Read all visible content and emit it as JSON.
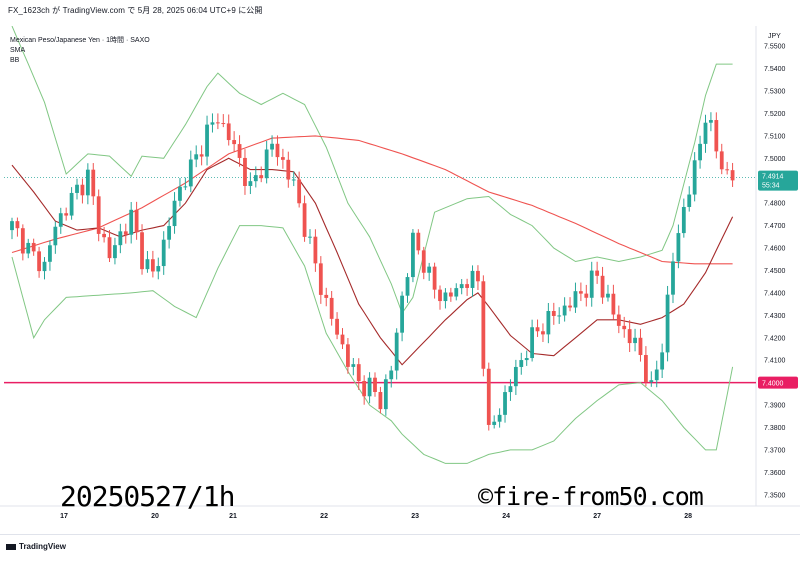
{
  "caption": "FX_1623ch が TradingView.com で 5月 28, 2025 06:04 UTC+9 に公開",
  "legend": {
    "symbol": "Mexican Peso/Japanese Yen · 1時間 · SAXO",
    "sma": "SMA",
    "bb": "BB"
  },
  "currency": "JPY",
  "last_price": "7.4914",
  "countdown": "55:34",
  "hline_label": "7.4000",
  "watermark_left": "20250527/1h",
  "watermark_right": "©fire-from50.com",
  "footer_logo": "TradingView",
  "colors": {
    "up": "#26a69a",
    "down": "#ef5350",
    "bb_band": "#81c784",
    "bb_mid": "#a52a2a",
    "sma": "#ef5350",
    "hline": "#e91e63",
    "last": "#26a69a"
  },
  "chart_data": {
    "type": "candlestick",
    "x_tick_labels": [
      "17",
      "20",
      "21",
      "22",
      "23",
      "24",
      "27",
      "28"
    ],
    "y_ticks": [
      "7.5500",
      "7.5400",
      "7.5300",
      "7.5200",
      "7.5100",
      "7.5000",
      "7.4900",
      "7.4800",
      "7.4700",
      "7.4600",
      "7.4500",
      "7.4400",
      "7.4300",
      "7.4200",
      "7.4100",
      "7.4000",
      "7.3900",
      "7.3800",
      "7.3700",
      "7.3600",
      "7.3500"
    ],
    "ylim": [
      7.345,
      7.559
    ],
    "horizontal_line": 7.4,
    "last_close": 7.4914,
    "close_path": [
      [
        0,
        7.47
      ],
      [
        2,
        7.463
      ],
      [
        4,
        7.456
      ],
      [
        6,
        7.452
      ],
      [
        8,
        7.47
      ],
      [
        10,
        7.478
      ],
      [
        12,
        7.486
      ],
      [
        14,
        7.492
      ],
      [
        16,
        7.47
      ],
      [
        18,
        7.456
      ],
      [
        20,
        7.466
      ],
      [
        22,
        7.474
      ],
      [
        24,
        7.456
      ],
      [
        26,
        7.448
      ],
      [
        28,
        7.462
      ],
      [
        30,
        7.48
      ],
      [
        32,
        7.492
      ],
      [
        34,
        7.5
      ],
      [
        36,
        7.512
      ],
      [
        38,
        7.518
      ],
      [
        40,
        7.51
      ],
      [
        42,
        7.499
      ],
      [
        44,
        7.486
      ],
      [
        46,
        7.496
      ],
      [
        48,
        7.506
      ],
      [
        50,
        7.498
      ],
      [
        52,
        7.488
      ],
      [
        54,
        7.47
      ],
      [
        56,
        7.452
      ],
      [
        58,
        7.435
      ],
      [
        60,
        7.422
      ],
      [
        62,
        7.41
      ],
      [
        64,
        7.4
      ],
      [
        66,
        7.398
      ],
      [
        68,
        7.392
      ],
      [
        70,
        7.406
      ],
      [
        72,
        7.438
      ],
      [
        74,
        7.463
      ],
      [
        76,
        7.454
      ],
      [
        78,
        7.441
      ],
      [
        80,
        7.438
      ],
      [
        82,
        7.441
      ],
      [
        84,
        7.446
      ],
      [
        86,
        7.445
      ],
      [
        88,
        7.377
      ],
      [
        90,
        7.388
      ],
      [
        92,
        7.4
      ],
      [
        94,
        7.41
      ],
      [
        96,
        7.42
      ],
      [
        98,
        7.426
      ],
      [
        100,
        7.43
      ],
      [
        102,
        7.433
      ],
      [
        104,
        7.438
      ],
      [
        106,
        7.442
      ],
      [
        108,
        7.448
      ],
      [
        110,
        7.436
      ],
      [
        112,
        7.426
      ],
      [
        114,
        7.42
      ],
      [
        116,
        7.413
      ],
      [
        118,
        7.396
      ],
      [
        120,
        7.417
      ],
      [
        122,
        7.455
      ],
      [
        124,
        7.478
      ],
      [
        126,
        7.495
      ],
      [
        128,
        7.52
      ],
      [
        130,
        7.504
      ],
      [
        132,
        7.492
      ],
      [
        133,
        7.4914
      ]
    ],
    "bb_upper": [
      [
        0,
        7.559
      ],
      [
        6,
        7.525
      ],
      [
        10,
        7.493
      ],
      [
        14,
        7.502
      ],
      [
        18,
        7.501
      ],
      [
        22,
        7.492
      ],
      [
        24,
        7.501
      ],
      [
        28,
        7.5
      ],
      [
        32,
        7.515
      ],
      [
        36,
        7.532
      ],
      [
        38,
        7.538
      ],
      [
        42,
        7.529
      ],
      [
        46,
        7.524
      ],
      [
        50,
        7.529
      ],
      [
        54,
        7.524
      ],
      [
        58,
        7.505
      ],
      [
        62,
        7.48
      ],
      [
        66,
        7.465
      ],
      [
        70,
        7.444
      ],
      [
        72,
        7.431
      ],
      [
        74,
        7.438
      ],
      [
        78,
        7.476
      ],
      [
        84,
        7.482
      ],
      [
        88,
        7.483
      ],
      [
        92,
        7.475
      ],
      [
        96,
        7.47
      ],
      [
        100,
        7.46
      ],
      [
        104,
        7.454
      ],
      [
        108,
        7.456
      ],
      [
        112,
        7.454
      ],
      [
        116,
        7.456
      ],
      [
        120,
        7.459
      ],
      [
        122,
        7.47
      ],
      [
        126,
        7.507
      ],
      [
        128,
        7.528
      ],
      [
        130,
        7.542
      ],
      [
        133,
        7.542
      ]
    ],
    "bb_lower": [
      [
        0,
        7.456
      ],
      [
        4,
        7.42
      ],
      [
        6,
        7.428
      ],
      [
        10,
        7.438
      ],
      [
        16,
        7.439
      ],
      [
        22,
        7.44
      ],
      [
        26,
        7.441
      ],
      [
        30,
        7.434
      ],
      [
        34,
        7.429
      ],
      [
        38,
        7.451
      ],
      [
        42,
        7.47
      ],
      [
        46,
        7.47
      ],
      [
        50,
        7.469
      ],
      [
        54,
        7.452
      ],
      [
        58,
        7.422
      ],
      [
        62,
        7.405
      ],
      [
        66,
        7.39
      ],
      [
        70,
        7.383
      ],
      [
        72,
        7.377
      ],
      [
        76,
        7.368
      ],
      [
        80,
        7.364
      ],
      [
        84,
        7.364
      ],
      [
        88,
        7.368
      ],
      [
        92,
        7.37
      ],
      [
        96,
        7.37
      ],
      [
        100,
        7.374
      ],
      [
        104,
        7.384
      ],
      [
        108,
        7.392
      ],
      [
        112,
        7.399
      ],
      [
        116,
        7.4
      ],
      [
        120,
        7.392
      ],
      [
        124,
        7.38
      ],
      [
        128,
        7.37
      ],
      [
        130,
        7.37
      ],
      [
        133,
        7.407
      ]
    ],
    "bb_middle": [
      [
        0,
        7.497
      ],
      [
        4,
        7.485
      ],
      [
        8,
        7.472
      ],
      [
        12,
        7.468
      ],
      [
        16,
        7.469
      ],
      [
        20,
        7.465
      ],
      [
        24,
        7.468
      ],
      [
        28,
        7.47
      ],
      [
        32,
        7.48
      ],
      [
        36,
        7.495
      ],
      [
        40,
        7.5
      ],
      [
        44,
        7.495
      ],
      [
        48,
        7.495
      ],
      [
        52,
        7.494
      ],
      [
        56,
        7.48
      ],
      [
        60,
        7.458
      ],
      [
        64,
        7.435
      ],
      [
        68,
        7.42
      ],
      [
        72,
        7.408
      ],
      [
        76,
        7.418
      ],
      [
        80,
        7.428
      ],
      [
        84,
        7.437
      ],
      [
        86,
        7.44
      ],
      [
        88,
        7.434
      ],
      [
        92,
        7.421
      ],
      [
        96,
        7.413
      ],
      [
        100,
        7.412
      ],
      [
        104,
        7.42
      ],
      [
        108,
        7.428
      ],
      [
        112,
        7.428
      ],
      [
        116,
        7.426
      ],
      [
        120,
        7.429
      ],
      [
        124,
        7.435
      ],
      [
        128,
        7.449
      ],
      [
        133,
        7.474
      ]
    ],
    "sma": [
      [
        0,
        7.458
      ],
      [
        8,
        7.464
      ],
      [
        16,
        7.469
      ],
      [
        24,
        7.478
      ],
      [
        32,
        7.489
      ],
      [
        40,
        7.502
      ],
      [
        48,
        7.509
      ],
      [
        56,
        7.51
      ],
      [
        64,
        7.508
      ],
      [
        72,
        7.502
      ],
      [
        80,
        7.495
      ],
      [
        88,
        7.485
      ],
      [
        96,
        7.479
      ],
      [
        104,
        7.471
      ],
      [
        112,
        7.462
      ],
      [
        120,
        7.454
      ],
      [
        126,
        7.453
      ],
      [
        133,
        7.453
      ]
    ]
  }
}
